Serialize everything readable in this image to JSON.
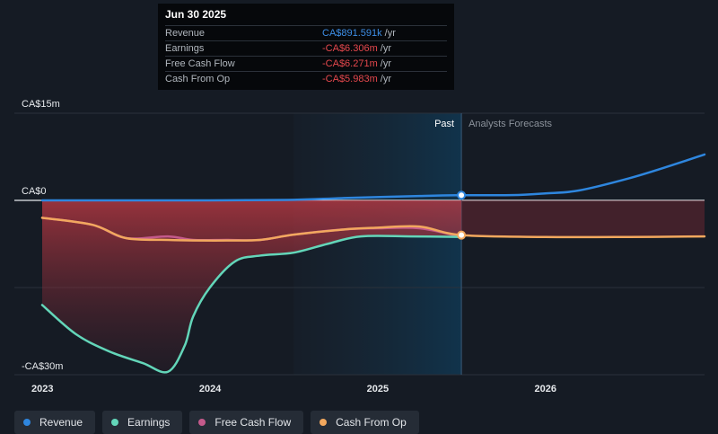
{
  "tooltip": {
    "date": "Jun 30 2025",
    "rows": [
      {
        "label": "Revenue",
        "value": "CA$891.591k",
        "unit": "/yr"
      },
      {
        "label": "Earnings",
        "value": "-CA$6.306m",
        "unit": "/yr"
      },
      {
        "label": "Free Cash Flow",
        "value": "-CA$6.271m",
        "unit": "/yr"
      },
      {
        "label": "Cash From Op",
        "value": "-CA$5.983m",
        "unit": "/yr"
      }
    ]
  },
  "legend": [
    {
      "name": "Revenue",
      "color": "#2e86de"
    },
    {
      "name": "Earnings",
      "color": "#63d6b9"
    },
    {
      "name": "Free Cash Flow",
      "color": "#c45a8b"
    },
    {
      "name": "Cash From Op",
      "color": "#f2a85e"
    }
  ],
  "chart_data": {
    "type": "line",
    "y_tick_labels": [
      "CA$15m",
      "CA$0",
      "-CA$30m"
    ],
    "x_tick_labels": [
      "2023",
      "2024",
      "2025",
      "2026"
    ],
    "ylim": [
      -30,
      15
    ],
    "xlim": [
      2023.0,
      2026.95
    ],
    "past_label": "Past",
    "forecast_label": "Analysts Forecasts",
    "highlight_x": 2025.5,
    "past_shade_start": 2024.5,
    "series": [
      {
        "name": "Revenue",
        "color": "#2e86de",
        "points": [
          [
            2023.0,
            0
          ],
          [
            2024.0,
            0
          ],
          [
            2024.5,
            0.1
          ],
          [
            2024.8,
            0.4
          ],
          [
            2025.25,
            0.75
          ],
          [
            2025.5,
            0.89
          ],
          [
            2025.8,
            0.9
          ],
          [
            2026.0,
            1.2
          ],
          [
            2026.2,
            1.7
          ],
          [
            2026.5,
            3.8
          ],
          [
            2026.75,
            6.0
          ],
          [
            2026.95,
            7.9
          ]
        ]
      },
      {
        "name": "Earnings",
        "color": "#63d6b9",
        "points": [
          [
            2023.0,
            -18
          ],
          [
            2023.2,
            -23
          ],
          [
            2023.4,
            -26
          ],
          [
            2023.6,
            -28
          ],
          [
            2023.75,
            -29.5
          ],
          [
            2023.85,
            -25
          ],
          [
            2023.9,
            -20
          ],
          [
            2024.0,
            -15
          ],
          [
            2024.15,
            -10.5
          ],
          [
            2024.3,
            -9.5
          ],
          [
            2024.5,
            -9
          ],
          [
            2024.7,
            -7.5
          ],
          [
            2024.9,
            -6.2
          ],
          [
            2025.2,
            -6.2
          ],
          [
            2025.5,
            -6.3
          ]
        ]
      },
      {
        "name": "Free Cash Flow",
        "color": "#c45a8b",
        "points": [
          [
            2023.0,
            -3
          ],
          [
            2023.3,
            -4.2
          ],
          [
            2023.5,
            -6.5
          ],
          [
            2023.75,
            -6.2
          ],
          [
            2023.9,
            -6.8
          ],
          [
            2024.1,
            -6.8
          ],
          [
            2024.3,
            -6.8
          ],
          [
            2024.5,
            -5.9
          ],
          [
            2024.8,
            -5.0
          ],
          [
            2025.0,
            -4.8
          ],
          [
            2025.25,
            -4.8
          ],
          [
            2025.5,
            -6.27
          ]
        ]
      },
      {
        "name": "Cash From Op",
        "color": "#f2a85e",
        "points": [
          [
            2023.0,
            -3
          ],
          [
            2023.3,
            -4.2
          ],
          [
            2023.5,
            -6.5
          ],
          [
            2023.75,
            -6.8
          ],
          [
            2023.9,
            -6.9
          ],
          [
            2024.1,
            -6.9
          ],
          [
            2024.3,
            -6.8
          ],
          [
            2024.5,
            -5.9
          ],
          [
            2024.8,
            -5.0
          ],
          [
            2025.0,
            -4.7
          ],
          [
            2025.25,
            -4.5
          ],
          [
            2025.5,
            -5.98
          ],
          [
            2026.0,
            -6.3
          ],
          [
            2026.5,
            -6.3
          ],
          [
            2026.95,
            -6.2
          ]
        ]
      }
    ]
  }
}
